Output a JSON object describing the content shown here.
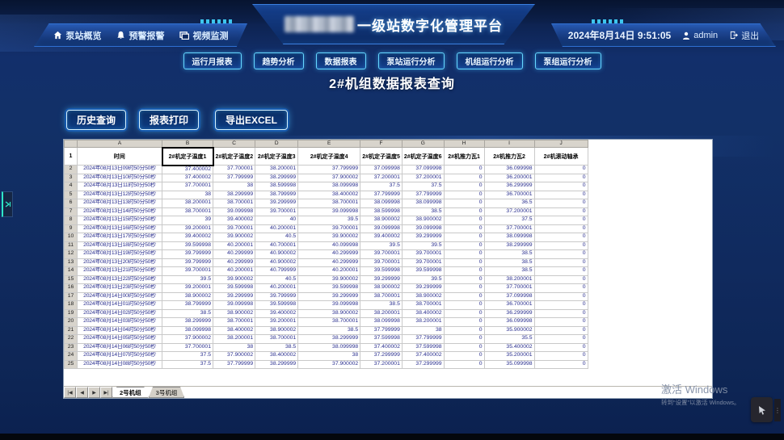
{
  "header": {
    "title": "一级站数字化管理平台",
    "nav": [
      {
        "label": "泵站概览",
        "icon": "home-icon"
      },
      {
        "label": "预警报警",
        "icon": "alarm-bell-icon"
      },
      {
        "label": "视频监测",
        "icon": "video-monitor-icon"
      }
    ],
    "datetime": "2024年8月14日 9:51:05",
    "user": "admin",
    "logout_label": "退出"
  },
  "tabs": [
    "运行月报表",
    "趋势分析",
    "数据报表",
    "泵站运行分析",
    "机组运行分析",
    "泵组运行分析"
  ],
  "page_title": "2#机组数据报表查询",
  "actions": [
    "历史查询",
    "报表打印",
    "导出EXCEL"
  ],
  "spreadsheet": {
    "column_letters": [
      "A",
      "B",
      "C",
      "D",
      "E",
      "F",
      "G",
      "H",
      "I",
      "J"
    ],
    "headers": [
      "时间",
      "2#机定子温度1",
      "2#机定子温度2",
      "2#机定子温度3",
      "2#机定子温度4",
      "2#机定子温度5",
      "2#机定子温度6",
      "2#机推力瓦1",
      "2#机推力瓦2",
      "2#机滚动轴承"
    ],
    "selected_cell": "B1",
    "header_row_number": "1",
    "nav_icons": [
      "|◀",
      "◀",
      "▶",
      "▶|"
    ],
    "sheet_tabs": [
      "2号机组",
      "3号机组"
    ],
    "rows": [
      {
        "no": "2",
        "time": "2024年08月13日09时50分50秒",
        "values": [
          "37.400002",
          "37.700001",
          "38.200001",
          "37.799999",
          "37.099998",
          "37.099998",
          "0",
          "36.099998",
          "0"
        ]
      },
      {
        "no": "3",
        "time": "2024年08月13日10时50分50秒",
        "values": [
          "37.400002",
          "37.799999",
          "38.299999",
          "37.900002",
          "37.200001",
          "37.200001",
          "0",
          "36.200001",
          "0"
        ]
      },
      {
        "no": "4",
        "time": "2024年08月13日11时50分50秒",
        "values": [
          "37.700001",
          "38",
          "38.599998",
          "38.099998",
          "37.5",
          "37.5",
          "0",
          "36.299999",
          "0"
        ]
      },
      {
        "no": "5",
        "time": "2024年08月13日12时50分50秒",
        "values": [
          "38",
          "38.299999",
          "38.799999",
          "38.400002",
          "37.799999",
          "37.799999",
          "0",
          "36.700001",
          "0"
        ]
      },
      {
        "no": "6",
        "time": "2024年08月13日13时50分50秒",
        "values": [
          "38.200001",
          "38.700001",
          "39.299999",
          "38.700001",
          "38.099998",
          "38.099998",
          "0",
          "36.5",
          "0"
        ]
      },
      {
        "no": "7",
        "time": "2024年08月13日14时50分50秒",
        "values": [
          "38.700001",
          "39.099998",
          "39.700001",
          "39.099998",
          "38.599998",
          "38.5",
          "0",
          "37.200001",
          "0"
        ]
      },
      {
        "no": "8",
        "time": "2024年08月13日15时50分50秒",
        "values": [
          "39",
          "39.400002",
          "40",
          "39.5",
          "38.900002",
          "38.900002",
          "0",
          "37.5",
          "0"
        ]
      },
      {
        "no": "9",
        "time": "2024年08月13日16时50分50秒",
        "values": [
          "39.200001",
          "39.700001",
          "40.200001",
          "39.700001",
          "39.099998",
          "39.099998",
          "0",
          "37.700001",
          "0"
        ]
      },
      {
        "no": "10",
        "time": "2024年08月13日17时50分50秒",
        "values": [
          "39.400002",
          "39.900002",
          "40.5",
          "39.900002",
          "39.400002",
          "39.299999",
          "0",
          "38.099998",
          "0"
        ]
      },
      {
        "no": "11",
        "time": "2024年08月13日18时50分50秒",
        "values": [
          "39.599998",
          "40.200001",
          "40.700001",
          "40.099998",
          "39.5",
          "39.5",
          "0",
          "38.299999",
          "0"
        ]
      },
      {
        "no": "12",
        "time": "2024年08月13日19时50分50秒",
        "values": [
          "39.799999",
          "40.299999",
          "40.900002",
          "40.299999",
          "39.700001",
          "39.700001",
          "0",
          "38.5",
          "0"
        ]
      },
      {
        "no": "13",
        "time": "2024年08月13日20时50分50秒",
        "values": [
          "39.799999",
          "40.299999",
          "40.900002",
          "40.299999",
          "39.700001",
          "39.700001",
          "0",
          "38.5",
          "0"
        ]
      },
      {
        "no": "14",
        "time": "2024年08月13日21时50分50秒",
        "values": [
          "39.700001",
          "40.200001",
          "40.799999",
          "40.200001",
          "39.599998",
          "39.599998",
          "0",
          "38.5",
          "0"
        ]
      },
      {
        "no": "15",
        "time": "2024年08月13日22时50分50秒",
        "values": [
          "39.5",
          "39.900002",
          "40.5",
          "39.900002",
          "39.299999",
          "39.5",
          "0",
          "38.200001",
          "0"
        ]
      },
      {
        "no": "16",
        "time": "2024年08月13日23时50分50秒",
        "values": [
          "39.200001",
          "39.599998",
          "40.200001",
          "39.599998",
          "38.900002",
          "39.299999",
          "0",
          "37.700001",
          "0"
        ]
      },
      {
        "no": "17",
        "time": "2024年08月14日00时50分50秒",
        "values": [
          "38.900002",
          "39.299999",
          "39.799999",
          "39.299999",
          "38.700001",
          "38.900002",
          "0",
          "37.099998",
          "0"
        ]
      },
      {
        "no": "18",
        "time": "2024年08月14日01时50分50秒",
        "values": [
          "38.799999",
          "39.099998",
          "39.599998",
          "39.099998",
          "38.5",
          "38.700001",
          "0",
          "36.700001",
          "0"
        ]
      },
      {
        "no": "19",
        "time": "2024年08月14日02时50分50秒",
        "values": [
          "38.5",
          "38.900002",
          "39.400002",
          "38.900002",
          "38.200001",
          "38.400002",
          "0",
          "36.299999",
          "0"
        ]
      },
      {
        "no": "20",
        "time": "2024年08月14日03时50分50秒",
        "values": [
          "38.299999",
          "38.700001",
          "39.200001",
          "38.700001",
          "38.099998",
          "38.200001",
          "0",
          "36.099998",
          "0"
        ]
      },
      {
        "no": "21",
        "time": "2024年08月14日04时50分50秒",
        "values": [
          "38.099998",
          "38.400002",
          "38.900002",
          "38.5",
          "37.799999",
          "38",
          "0",
          "35.900002",
          "0"
        ]
      },
      {
        "no": "22",
        "time": "2024年08月14日05时50分50秒",
        "values": [
          "37.900002",
          "38.200001",
          "38.700001",
          "38.299999",
          "37.599998",
          "37.799999",
          "0",
          "35.5",
          "0"
        ]
      },
      {
        "no": "23",
        "time": "2024年08月14日06时50分50秒",
        "values": [
          "37.700001",
          "38",
          "38.5",
          "38.099998",
          "37.400002",
          "37.599998",
          "0",
          "35.400002",
          "0"
        ]
      },
      {
        "no": "24",
        "time": "2024年08月14日07时50分50秒",
        "values": [
          "37.5",
          "37.900002",
          "38.400002",
          "38",
          "37.299999",
          "37.400002",
          "0",
          "35.200001",
          "0"
        ]
      },
      {
        "no": "25",
        "time": "2024年08月14日08时50分50秒",
        "values": [
          "37.5",
          "37.799999",
          "38.299999",
          "37.900002",
          "37.200001",
          "37.299999",
          "0",
          "35.099998",
          "0"
        ]
      }
    ]
  },
  "watermark": {
    "line1": "激活 Windows",
    "line2": "转到“设置”以激活 Windows。"
  },
  "colors": {
    "accent_cyan": "#43d9ff",
    "panel_blue": "#123f8e",
    "bg_blue": "#122f6b",
    "excel_gray": "#d8d4cc",
    "data_text": "#2a2f8f"
  }
}
